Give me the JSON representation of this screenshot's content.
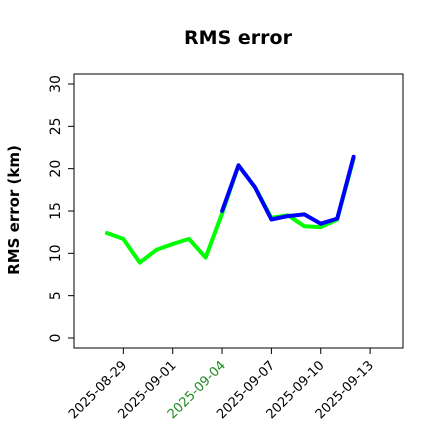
{
  "chart_data": {
    "type": "line",
    "title": "RMS error",
    "xlabel": "",
    "ylabel": "RMS error (km)",
    "ylim": [
      0,
      30
    ],
    "yticks": [
      0,
      5,
      10,
      15,
      20,
      25,
      30
    ],
    "xlim": [
      "2025-08-26",
      "2025-09-15"
    ],
    "xticks": [
      "2025-08-29",
      "2025-09-01",
      "2025-09-04",
      "2025-09-07",
      "2025-09-10",
      "2025-09-13"
    ],
    "highlight_tick": "2025-09-04",
    "highlight_color": "#228B22",
    "grid": false,
    "legend": "none",
    "series": [
      {
        "color": "#00FF00",
        "points": [
          {
            "x": "2025-08-28",
            "y": 12.4
          },
          {
            "x": "2025-08-29",
            "y": 11.7
          },
          {
            "x": "2025-08-30",
            "y": 8.9
          },
          {
            "x": "2025-08-31",
            "y": 10.4
          },
          {
            "x": "2025-09-01",
            "y": 11.1
          },
          {
            "x": "2025-09-02",
            "y": 11.7
          },
          {
            "x": "2025-09-03",
            "y": 9.5
          },
          {
            "x": "2025-09-04",
            "y": 14.7
          },
          {
            "x": "2025-09-05",
            "y": 20.4
          },
          {
            "x": "2025-09-06",
            "y": 17.8
          },
          {
            "x": "2025-09-07",
            "y": 14.2
          },
          {
            "x": "2025-09-08",
            "y": 14.5
          },
          {
            "x": "2025-09-09",
            "y": 13.2
          },
          {
            "x": "2025-09-10",
            "y": 13.1
          },
          {
            "x": "2025-09-11",
            "y": 14.0
          },
          {
            "x": "2025-09-12",
            "y": 21.2
          }
        ]
      },
      {
        "color": "#0000FF",
        "points": [
          {
            "x": "2025-09-04",
            "y": 15.0
          },
          {
            "x": "2025-09-05",
            "y": 20.4
          },
          {
            "x": "2025-09-06",
            "y": 17.8
          },
          {
            "x": "2025-09-07",
            "y": 14.0
          },
          {
            "x": "2025-09-08",
            "y": 14.4
          },
          {
            "x": "2025-09-09",
            "y": 14.6
          },
          {
            "x": "2025-09-10",
            "y": 13.5
          },
          {
            "x": "2025-09-11",
            "y": 14.1
          },
          {
            "x": "2025-09-12",
            "y": 21.4
          }
        ]
      }
    ]
  }
}
